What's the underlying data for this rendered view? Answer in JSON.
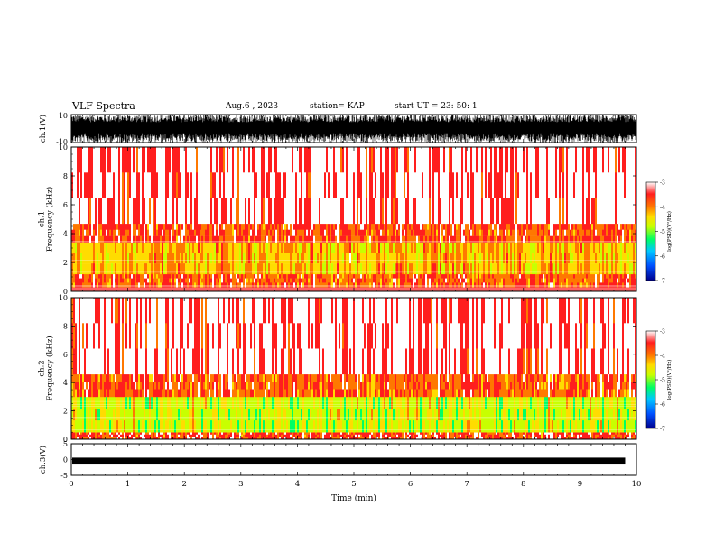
{
  "header": {
    "title": "VLF Spectra",
    "date": "Aug.6 , 2023",
    "station": "station= KAP",
    "start": "start UT = 23: 50: 1"
  },
  "colors": {
    "background": "#ffffff",
    "spectrum_low": "#ff4040",
    "spectrum_mid": "#ffd200",
    "spectrum_high": "#3cd23c",
    "trace": "#000000"
  },
  "colorbar": {
    "label": "log(PSD)(V²/Hz)",
    "ticks": [
      "-3",
      "-4",
      "-5",
      "-6",
      "-7"
    ],
    "range": [
      -7,
      -3
    ],
    "colors": [
      "#00008c",
      "#0050ff",
      "#00c8ff",
      "#00ff64",
      "#c8ff00",
      "#ffdc00",
      "#ff7800",
      "#ff1e1e",
      "#ffffff"
    ]
  },
  "chart_data": [
    {
      "type": "line",
      "panel": "ch1-waveform",
      "ylabel": "ch.1(V)",
      "yticks": [
        "10",
        "-10"
      ],
      "ylim": [
        -10,
        10
      ],
      "description_values": {
        "amplitude_range": [
          -10,
          10
        ]
      }
    },
    {
      "type": "heatmap",
      "panel": "ch1-spectrogram",
      "ylabel": "ch.1\nFrequency (kHz)",
      "yticks": [
        "0",
        "2",
        "4",
        "6",
        "8",
        "10"
      ],
      "ylim": [
        0,
        10
      ],
      "xlim": [
        0,
        10
      ],
      "bands": [
        {
          "from_khz": 0.0,
          "to_khz": 0.3,
          "level": "white-lines"
        },
        {
          "from_khz": 0.3,
          "to_khz": 1.2,
          "level": -3.8
        },
        {
          "from_khz": 1.2,
          "to_khz": 3.4,
          "level": -4.4
        },
        {
          "from_khz": 3.4,
          "to_khz": 4.7,
          "level": -3.7
        },
        {
          "from_khz": 4.7,
          "to_khz": 10.0,
          "level": -3.2
        }
      ]
    },
    {
      "type": "heatmap",
      "panel": "ch2-spectrogram",
      "ylabel": "ch.2\nFrequency (kHz)",
      "yticks": [
        "0",
        "2",
        "4",
        "6",
        "8",
        "10"
      ],
      "ylim": [
        0,
        10
      ],
      "xlim": [
        0,
        10
      ],
      "bands": [
        {
          "from_khz": 0.0,
          "to_khz": 0.5,
          "level": -3.6
        },
        {
          "from_khz": 0.5,
          "to_khz": 3.0,
          "level": -4.9
        },
        {
          "from_khz": 3.0,
          "to_khz": 4.6,
          "level": -3.8
        },
        {
          "from_khz": 4.6,
          "to_khz": 10.0,
          "level": -3.2
        }
      ]
    },
    {
      "type": "line",
      "panel": "ch3-waveform",
      "ylabel": "ch.3(V)",
      "yticks": [
        "5",
        "0",
        "-5"
      ],
      "ylim": [
        -5,
        5
      ],
      "xlabel": "Time (min)",
      "xticks": [
        "0",
        "1",
        "2",
        "3",
        "4",
        "5",
        "6",
        "7",
        "8",
        "9",
        "10"
      ],
      "xlim": [
        0,
        10
      ]
    }
  ]
}
